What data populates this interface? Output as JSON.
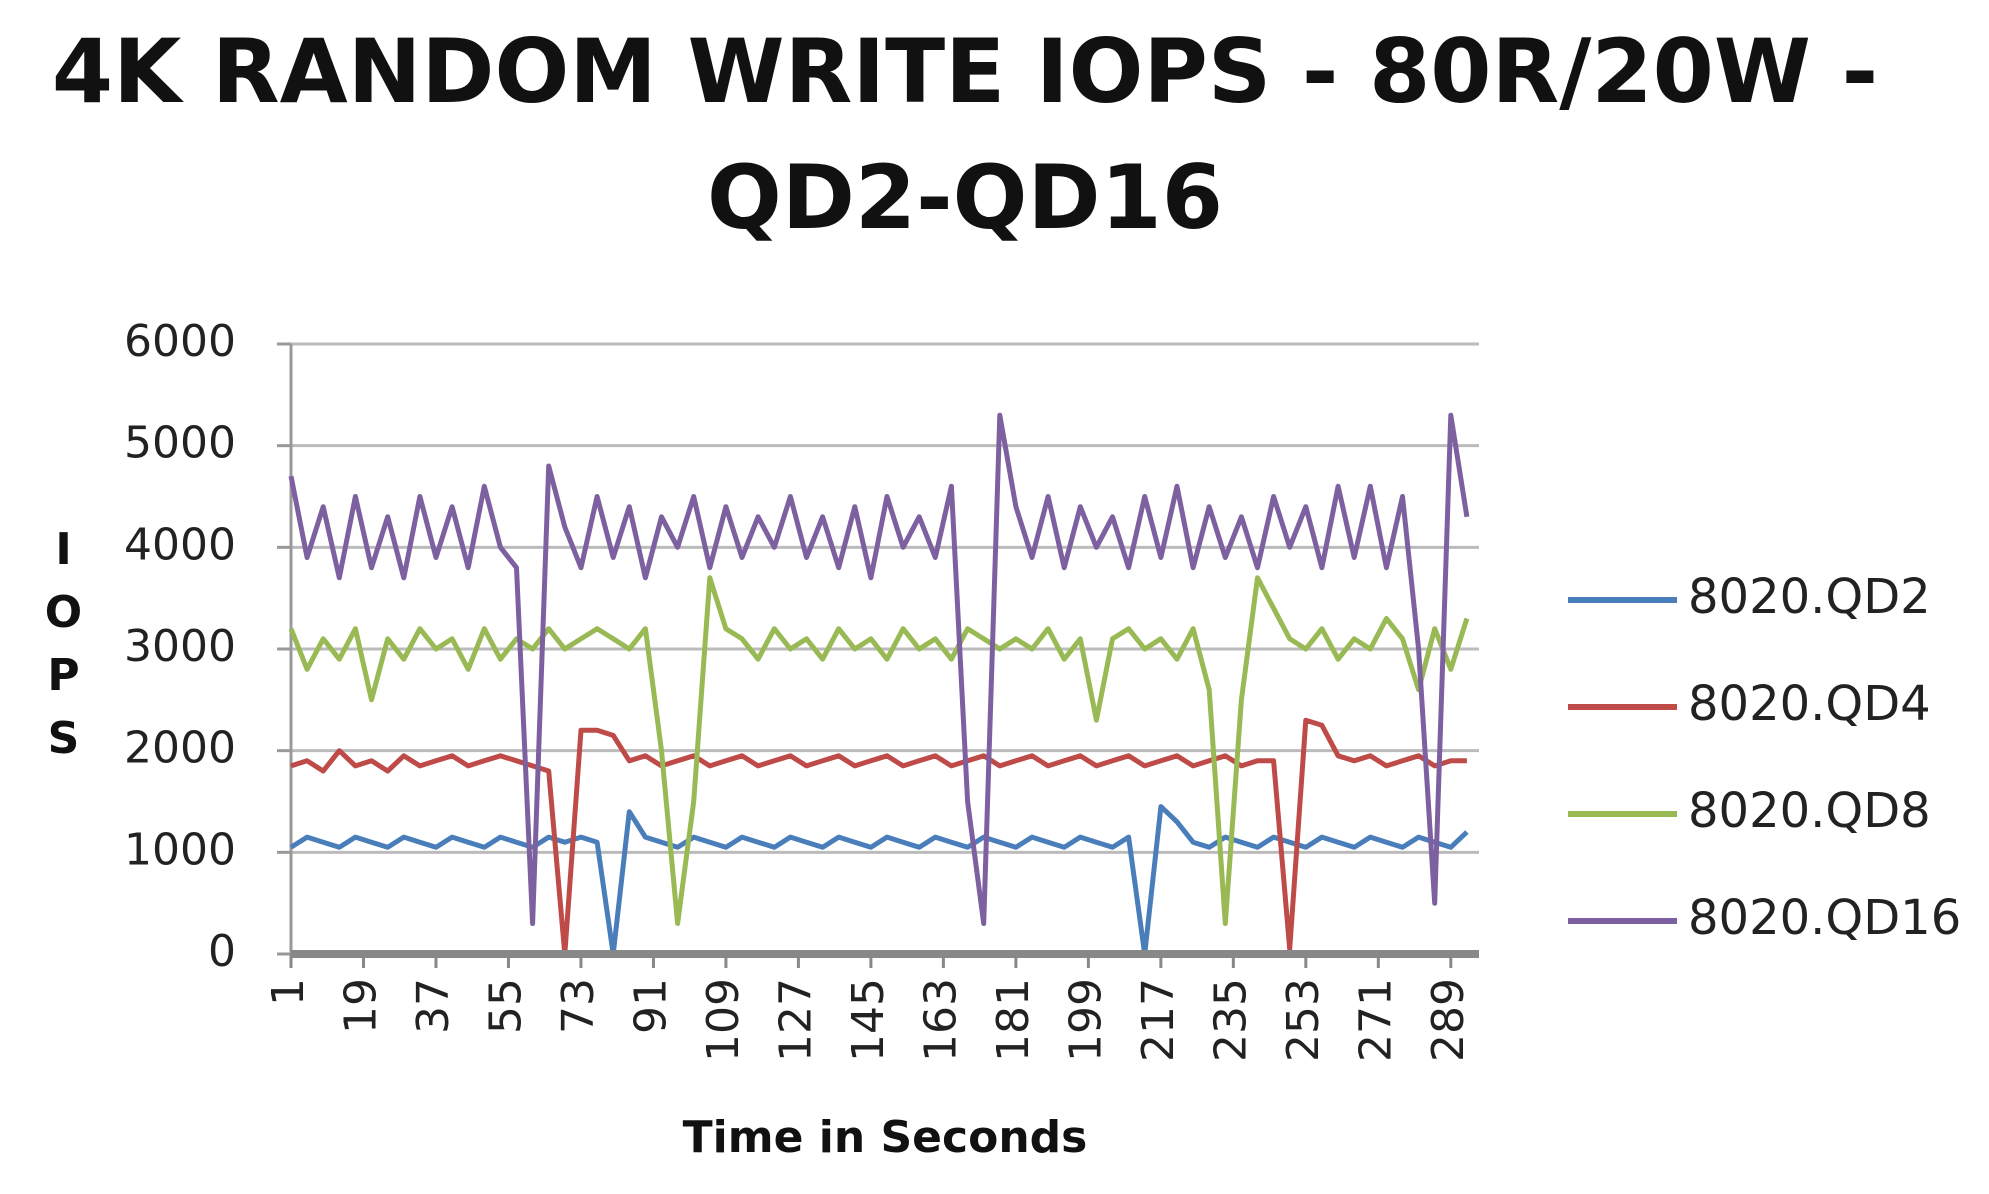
{
  "chart_data": {
    "type": "line",
    "title": "4K RANDOM WRITE IOPS - 80R/20W -",
    "subtitle": "QD2-QD16",
    "x_label": "Time in Seconds",
    "y_label": "IOPS",
    "x": [
      1,
      5,
      9,
      13,
      17,
      21,
      25,
      29,
      33,
      37,
      41,
      45,
      49,
      53,
      57,
      61,
      65,
      69,
      73,
      77,
      81,
      85,
      89,
      93,
      97,
      101,
      105,
      109,
      113,
      117,
      121,
      125,
      129,
      133,
      137,
      141,
      145,
      149,
      153,
      157,
      161,
      165,
      169,
      173,
      177,
      181,
      185,
      189,
      193,
      197,
      201,
      205,
      209,
      213,
      217,
      221,
      225,
      229,
      233,
      237,
      241,
      245,
      249,
      253,
      257,
      261,
      265,
      269,
      273,
      277,
      281,
      285,
      289,
      293
    ],
    "xlim": [
      1,
      296
    ],
    "xticks": [
      1,
      19,
      37,
      55,
      73,
      91,
      109,
      127,
      145,
      163,
      181,
      199,
      217,
      235,
      253,
      271,
      289
    ],
    "ylim": [
      0,
      6000
    ],
    "yticks": [
      0,
      1000,
      2000,
      3000,
      4000,
      5000,
      6000
    ],
    "grid": true,
    "legend": "right",
    "series": [
      {
        "name": "8020.QD2",
        "color": "#4a7ebb",
        "values": [
          1050,
          1150,
          1100,
          1050,
          1150,
          1100,
          1050,
          1150,
          1100,
          1050,
          1150,
          1100,
          1050,
          1150,
          1100,
          1050,
          1150,
          1100,
          1150,
          1100,
          0,
          1400,
          1150,
          1100,
          1050,
          1150,
          1100,
          1050,
          1150,
          1100,
          1050,
          1150,
          1100,
          1050,
          1150,
          1100,
          1050,
          1150,
          1100,
          1050,
          1150,
          1100,
          1050,
          1150,
          1100,
          1050,
          1150,
          1100,
          1050,
          1150,
          1100,
          1050,
          1150,
          0,
          1450,
          1300,
          1100,
          1050,
          1150,
          1100,
          1050,
          1150,
          1100,
          1050,
          1150,
          1100,
          1050,
          1150,
          1100,
          1050,
          1150,
          1100,
          1050,
          1200
        ]
      },
      {
        "name": "8020.QD4",
        "color": "#be4b48",
        "values": [
          1850,
          1900,
          1800,
          2000,
          1850,
          1900,
          1800,
          1950,
          1850,
          1900,
          1950,
          1850,
          1900,
          1950,
          1900,
          1850,
          1800,
          0,
          2200,
          2200,
          2150,
          1900,
          1950,
          1850,
          1900,
          1950,
          1850,
          1900,
          1950,
          1850,
          1900,
          1950,
          1850,
          1900,
          1950,
          1850,
          1900,
          1950,
          1850,
          1900,
          1950,
          1850,
          1900,
          1950,
          1850,
          1900,
          1950,
          1850,
          1900,
          1950,
          1850,
          1900,
          1950,
          1850,
          1900,
          1950,
          1850,
          1900,
          1950,
          1850,
          1900,
          1900,
          50,
          2300,
          2250,
          1950,
          1900,
          1950,
          1850,
          1900,
          1950,
          1850,
          1900,
          1900
        ]
      },
      {
        "name": "8020.QD8",
        "color": "#98b954",
        "values": [
          3200,
          2800,
          3100,
          2900,
          3200,
          2500,
          3100,
          2900,
          3200,
          3000,
          3100,
          2800,
          3200,
          2900,
          3100,
          3000,
          3200,
          3000,
          3100,
          3200,
          3100,
          3000,
          3200,
          2000,
          300,
          1500,
          3700,
          3200,
          3100,
          2900,
          3200,
          3000,
          3100,
          2900,
          3200,
          3000,
          3100,
          2900,
          3200,
          3000,
          3100,
          2900,
          3200,
          3100,
          3000,
          3100,
          3000,
          3200,
          2900,
          3100,
          2300,
          3100,
          3200,
          3000,
          3100,
          2900,
          3200,
          2600,
          300,
          2500,
          3700,
          3400,
          3100,
          3000,
          3200,
          2900,
          3100,
          3000,
          3300,
          3100,
          2600,
          3200,
          2800,
          3300
        ]
      },
      {
        "name": "8020.QD16",
        "color": "#7d60a0",
        "values": [
          4700,
          3900,
          4400,
          3700,
          4500,
          3800,
          4300,
          3700,
          4500,
          3900,
          4400,
          3800,
          4600,
          4000,
          3800,
          300,
          4800,
          4200,
          3800,
          4500,
          3900,
          4400,
          3700,
          4300,
          4000,
          4500,
          3800,
          4400,
          3900,
          4300,
          4000,
          4500,
          3900,
          4300,
          3800,
          4400,
          3700,
          4500,
          4000,
          4300,
          3900,
          4600,
          1500,
          300,
          5300,
          4400,
          3900,
          4500,
          3800,
          4400,
          4000,
          4300,
          3800,
          4500,
          3900,
          4600,
          3800,
          4400,
          3900,
          4300,
          3800,
          4500,
          4000,
          4400,
          3800,
          4600,
          3900,
          4600,
          3800,
          4500,
          3000,
          500,
          5300,
          4300
        ]
      }
    ]
  }
}
